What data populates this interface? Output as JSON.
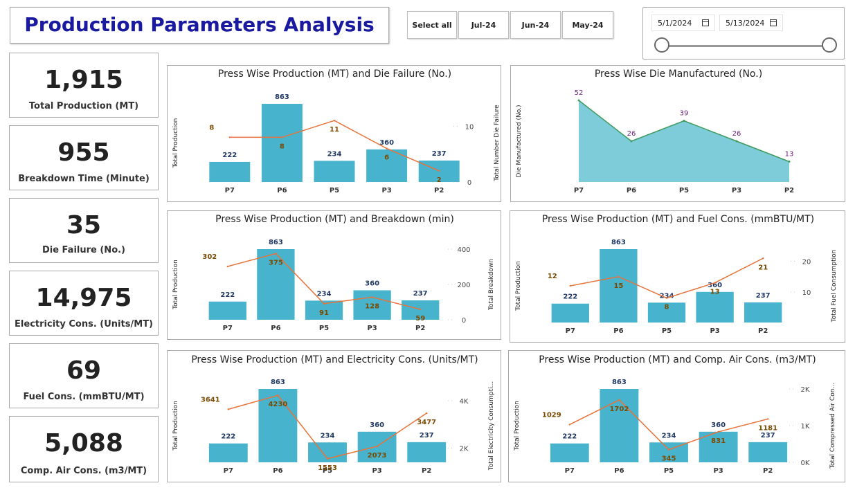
{
  "header": {
    "title": "Production Parameters Analysis"
  },
  "month_slicer": {
    "items": [
      "Select all",
      "Jul-24",
      "Jun-24",
      "May-24"
    ]
  },
  "date_range": {
    "start": "5/1/2024",
    "end": "5/13/2024"
  },
  "kpis": [
    {
      "value": "1,915",
      "label": "Total Production (MT)"
    },
    {
      "value": "955",
      "label": "Breakdown Time (Minute)"
    },
    {
      "value": "35",
      "label": "Die Failure (No.)"
    },
    {
      "value": "14,975",
      "label": "Electricity Cons. (Units/MT)"
    },
    {
      "value": "69",
      "label": "Fuel Cons. (mmBTU/MT)"
    },
    {
      "value": "5,088",
      "label": "Comp. Air Cons. (m3/MT)"
    }
  ],
  "colors": {
    "bar": "#48b3cc",
    "line": "#e8733a",
    "area_fill": "#7ecbd9",
    "area_line": "#3e9a5e",
    "title": "#1a1aa0",
    "bar_label": "#1f3864",
    "line_label": "#7a4a00",
    "area_label": "#6a1b7a"
  },
  "chart_data": [
    {
      "id": "die_failure",
      "type": "bar+line",
      "title": "Press Wise Production (MT) and Die Failure (No.)",
      "categories": [
        "P7",
        "P6",
        "P5",
        "P3",
        "P2"
      ],
      "bar_values": [
        222,
        863,
        234,
        360,
        237
      ],
      "line_values": [
        8,
        8,
        11,
        6,
        2
      ],
      "ylabel": "Total Production",
      "y2label": "Total Number Die Failure",
      "ylim": [
        0,
        863
      ],
      "y2lim": [
        0,
        14
      ],
      "y2ticks": [
        0,
        10
      ],
      "y2tick_labels": [
        "0",
        "10"
      ]
    },
    {
      "id": "die_manufactured",
      "type": "area",
      "title": "Press Wise Die Manufactured (No.)",
      "categories": [
        "P7",
        "P6",
        "P5",
        "P3",
        "P2"
      ],
      "values": [
        52,
        26,
        39,
        26,
        13
      ],
      "ylabel": "Die Manufactured (No.)",
      "ylim": [
        0,
        52
      ]
    },
    {
      "id": "breakdown",
      "type": "bar+line",
      "title": "Press Wise Production (MT) and Breakdown (min)",
      "categories": [
        "P7",
        "P6",
        "P5",
        "P3",
        "P2"
      ],
      "bar_values": [
        222,
        863,
        234,
        360,
        237
      ],
      "line_values": [
        302,
        375,
        91,
        128,
        59
      ],
      "ylabel": "Total Production",
      "y2label": "Total Breakdown",
      "ylim": [
        0,
        863
      ],
      "y2lim": [
        0,
        400
      ],
      "y2ticks": [
        0,
        200,
        400
      ],
      "y2tick_labels": [
        "0",
        "200",
        "400"
      ]
    },
    {
      "id": "fuel",
      "type": "bar+line",
      "title": "Press Wise Production (MT) and Fuel Cons. (mmBTU/MT)",
      "categories": [
        "P7",
        "P6",
        "P5",
        "P3",
        "P2"
      ],
      "bar_values": [
        222,
        863,
        234,
        360,
        237
      ],
      "line_values": [
        12,
        15,
        8,
        13,
        21
      ],
      "ylabel": "Total Production",
      "y2label": "Total Fuel Consumption",
      "ylim": [
        0,
        863
      ],
      "y2lim": [
        0,
        24
      ],
      "y2ticks": [
        10,
        20
      ],
      "y2tick_labels": [
        "10",
        "20"
      ]
    },
    {
      "id": "electricity",
      "type": "bar+line",
      "title": "Press Wise Production (MT) and Electricity Cons. (Units/MT)",
      "categories": [
        "P7",
        "P6",
        "P5",
        "P3",
        "P2"
      ],
      "bar_values": [
        222,
        863,
        234,
        360,
        237
      ],
      "line_values": [
        3641,
        4230,
        1553,
        2073,
        3477
      ],
      "ylabel": "Total Production",
      "y2label": "Total Electricity Consumpti...",
      "ylim": [
        0,
        863
      ],
      "y2lim": [
        1400,
        4500
      ],
      "y2ticks": [
        2000,
        4000
      ],
      "y2tick_labels": [
        "2K",
        "4K"
      ]
    },
    {
      "id": "comp_air",
      "type": "bar+line",
      "title": "Press Wise Production (MT) and Comp. Air Cons. (m3/MT)",
      "categories": [
        "P7",
        "P6",
        "P5",
        "P3",
        "P2"
      ],
      "bar_values": [
        222,
        863,
        234,
        360,
        237
      ],
      "line_values": [
        1029,
        1702,
        345,
        831,
        1181
      ],
      "ylabel": "Total Production",
      "y2label": "Total Compressed Air Con...",
      "ylim": [
        0,
        863
      ],
      "y2lim": [
        0,
        2000
      ],
      "y2ticks": [
        0,
        1000,
        2000
      ],
      "y2tick_labels": [
        "0K",
        "1K",
        "2K"
      ]
    }
  ]
}
